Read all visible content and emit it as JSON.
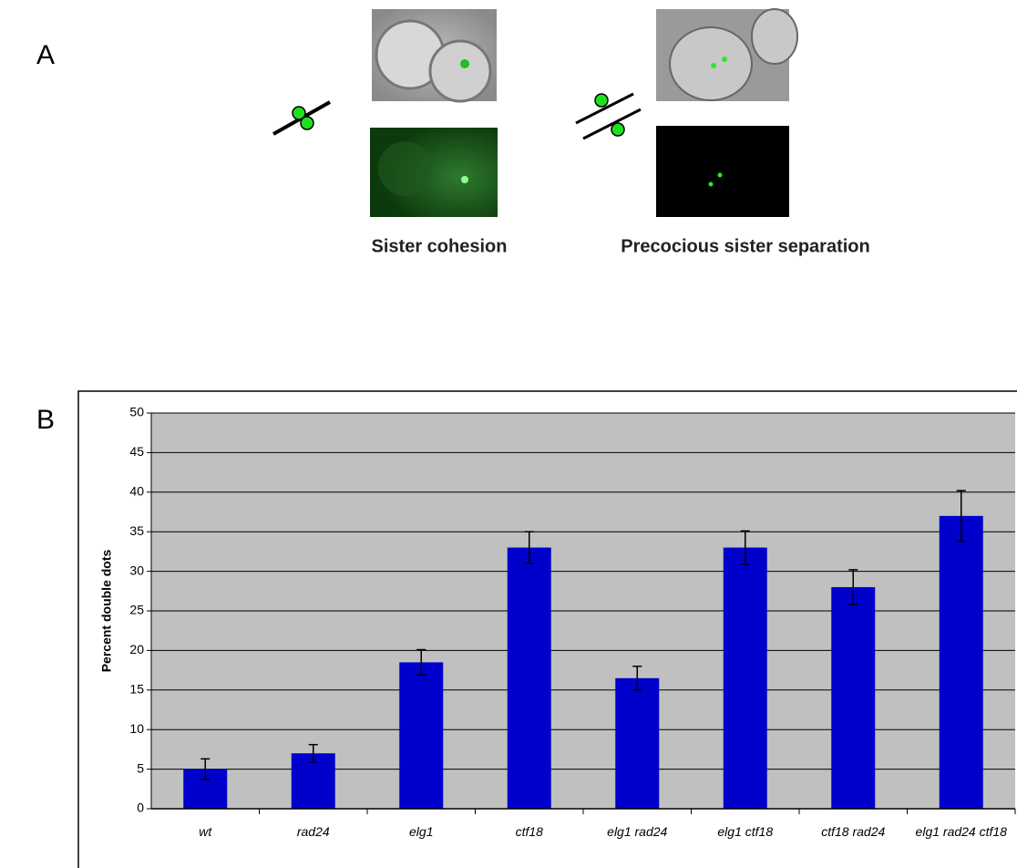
{
  "panel_a": {
    "label": "A",
    "captions": [
      "Sister cohesion",
      "Precocious sister separation"
    ]
  },
  "chart_data": {
    "type": "bar",
    "panel_label": "B",
    "y_label": "Percent double dots",
    "categories": [
      "wt",
      "rad24",
      "elg1",
      "ctf18",
      "elg1 rad24",
      "elg1 ctf18",
      "ctf18 rad24",
      "elg1 rad24 ctf18"
    ],
    "values": [
      5,
      7,
      18.5,
      33,
      16.5,
      33,
      28,
      37
    ],
    "errors": [
      1.3,
      1.1,
      1.6,
      2,
      1.5,
      2.1,
      2.2,
      3.2
    ],
    "color": "#0000cc",
    "plot_background": "#c0c0c0",
    "ylim": [
      0,
      50
    ],
    "yticks": [
      0,
      5,
      10,
      15,
      20,
      25,
      30,
      35,
      40,
      45,
      50
    ],
    "grid": true
  }
}
